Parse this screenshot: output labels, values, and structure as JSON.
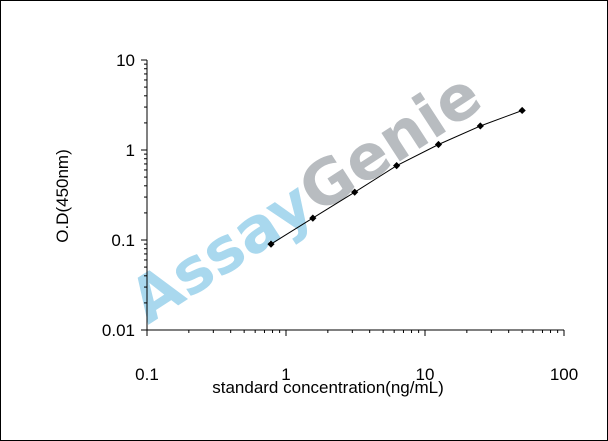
{
  "chart_data": {
    "type": "line",
    "title": "",
    "xlabel": "standard concentration(ng/mL)",
    "ylabel": "O.D(450nm)",
    "x_scale": "log",
    "y_scale": "log",
    "xlim": [
      0.1,
      100
    ],
    "ylim": [
      0.01,
      10
    ],
    "x_tick_labels": [
      "0.1",
      "1",
      "10",
      "100"
    ],
    "y_tick_labels": [
      "0.01",
      "0.1",
      "1",
      "10"
    ],
    "grid": false,
    "legend": "none",
    "series": [
      {
        "x": [
          0.78,
          1.56,
          3.12,
          6.25,
          12.5,
          25,
          50
        ],
        "y": [
          0.09,
          0.175,
          0.34,
          0.67,
          1.15,
          1.85,
          2.75
        ],
        "color": "#000000",
        "marker": "diamond"
      }
    ],
    "watermark": {
      "text_a": "Assay",
      "text_b": "Genie",
      "color_a": "#a9d8ee",
      "color_b": "#b8bcc0"
    }
  }
}
